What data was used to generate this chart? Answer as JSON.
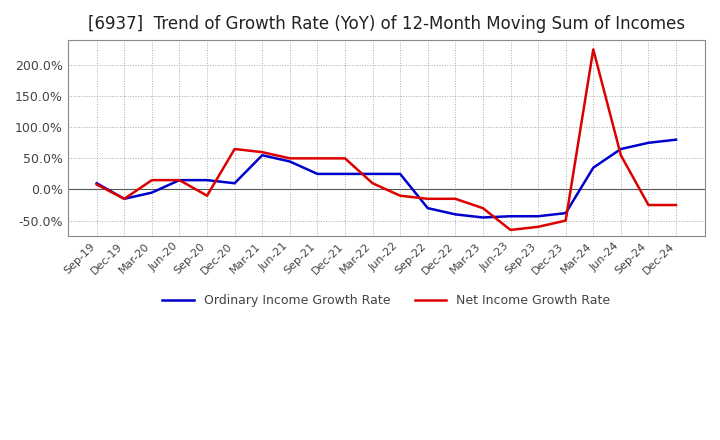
{
  "title": "[6937]  Trend of Growth Rate (YoY) of 12-Month Moving Sum of Incomes",
  "title_fontsize": 12,
  "ylim": [
    -75,
    240
  ],
  "yticks": [
    -50,
    0,
    50,
    100,
    150,
    200
  ],
  "background_color": "#ffffff",
  "grid_color": "#aaaaaa",
  "ordinary_color": "#0000cc",
  "net_color": "#dd0000",
  "ordinary_label": "Ordinary Income Growth Rate",
  "net_label": "Net Income Growth Rate",
  "x_labels": [
    "Sep-19",
    "Dec-19",
    "Mar-20",
    "Jun-20",
    "Sep-20",
    "Dec-20",
    "Mar-21",
    "Jun-21",
    "Sep-21",
    "Dec-21",
    "Mar-22",
    "Jun-22",
    "Sep-22",
    "Dec-22",
    "Mar-23",
    "Jun-23",
    "Sep-23",
    "Dec-23",
    "Mar-24",
    "Jun-24",
    "Sep-24",
    "Dec-24"
  ],
  "ordinary_income_growth": [
    10,
    -15,
    -5,
    15,
    15,
    10,
    55,
    45,
    25,
    25,
    25,
    25,
    -30,
    -40,
    -45,
    -43,
    -43,
    -38,
    35,
    65,
    75,
    80
  ],
  "net_income_growth": [
    8,
    -15,
    15,
    15,
    -10,
    65,
    60,
    50,
    50,
    50,
    10,
    -10,
    -15,
    -15,
    -30,
    -65,
    -60,
    -50,
    225,
    55,
    -25,
    -25
  ]
}
